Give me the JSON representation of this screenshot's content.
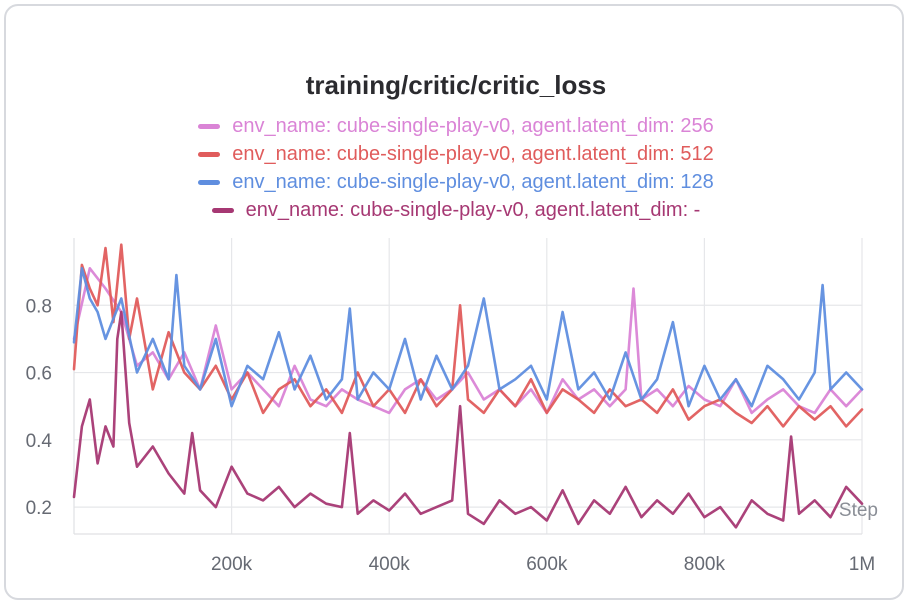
{
  "chart_data": {
    "type": "line",
    "title": "training/critic/critic_loss",
    "xlabel": "Step",
    "ylabel": "",
    "xlim": [
      0,
      1000000
    ],
    "ylim": [
      0.12,
      1.0
    ],
    "xticks": [
      200000,
      400000,
      600000,
      800000,
      1000000
    ],
    "xtick_labels": [
      "200k",
      "400k",
      "600k",
      "800k",
      "1M"
    ],
    "yticks": [
      0.2,
      0.4,
      0.6,
      0.8
    ],
    "ytick_labels": [
      "0.2",
      "0.4",
      "0.6",
      "0.8"
    ],
    "grid": true,
    "legend_position": "top-center",
    "series": [
      {
        "name": "env_name: cube-single-play-v0, agent.latent_dim: 256",
        "color": "#da84d6",
        "x": [
          0,
          20000,
          40000,
          60000,
          80000,
          100000,
          120000,
          140000,
          160000,
          180000,
          200000,
          220000,
          240000,
          260000,
          280000,
          300000,
          320000,
          340000,
          360000,
          380000,
          400000,
          420000,
          440000,
          460000,
          480000,
          500000,
          520000,
          540000,
          560000,
          580000,
          600000,
          620000,
          640000,
          660000,
          680000,
          700000,
          710000,
          720000,
          740000,
          760000,
          780000,
          800000,
          820000,
          840000,
          860000,
          880000,
          900000,
          920000,
          940000,
          960000,
          980000,
          1000000
        ],
        "values": [
          0.7,
          0.91,
          0.85,
          0.78,
          0.62,
          0.66,
          0.58,
          0.66,
          0.55,
          0.74,
          0.55,
          0.6,
          0.55,
          0.5,
          0.62,
          0.52,
          0.5,
          0.55,
          0.52,
          0.5,
          0.48,
          0.55,
          0.58,
          0.52,
          0.55,
          0.6,
          0.52,
          0.55,
          0.5,
          0.55,
          0.48,
          0.58,
          0.52,
          0.55,
          0.5,
          0.55,
          0.85,
          0.52,
          0.55,
          0.5,
          0.56,
          0.52,
          0.5,
          0.58,
          0.48,
          0.52,
          0.55,
          0.5,
          0.48,
          0.55,
          0.5,
          0.55
        ]
      },
      {
        "name": "env_name: cube-single-play-v0, agent.latent_dim: 512",
        "color": "#e05c5c",
        "x": [
          0,
          10000,
          20000,
          30000,
          40000,
          50000,
          60000,
          70000,
          80000,
          100000,
          120000,
          140000,
          160000,
          180000,
          200000,
          220000,
          240000,
          260000,
          280000,
          300000,
          320000,
          340000,
          360000,
          380000,
          400000,
          420000,
          440000,
          460000,
          480000,
          490000,
          500000,
          520000,
          540000,
          560000,
          580000,
          600000,
          620000,
          640000,
          660000,
          680000,
          700000,
          720000,
          740000,
          760000,
          780000,
          800000,
          820000,
          840000,
          860000,
          880000,
          900000,
          920000,
          940000,
          960000,
          980000,
          1000000
        ],
        "values": [
          0.61,
          0.92,
          0.85,
          0.8,
          0.97,
          0.75,
          0.98,
          0.7,
          0.82,
          0.55,
          0.72,
          0.6,
          0.55,
          0.62,
          0.52,
          0.6,
          0.48,
          0.55,
          0.58,
          0.5,
          0.55,
          0.48,
          0.6,
          0.5,
          0.55,
          0.48,
          0.58,
          0.5,
          0.55,
          0.8,
          0.52,
          0.48,
          0.55,
          0.5,
          0.58,
          0.48,
          0.55,
          0.52,
          0.48,
          0.55,
          0.5,
          0.52,
          0.48,
          0.55,
          0.46,
          0.5,
          0.52,
          0.48,
          0.45,
          0.5,
          0.44,
          0.5,
          0.46,
          0.5,
          0.44,
          0.49
        ]
      },
      {
        "name": "env_name: cube-single-play-v0, agent.latent_dim: 128",
        "color": "#5f8edf",
        "x": [
          0,
          10000,
          20000,
          30000,
          40000,
          60000,
          80000,
          100000,
          120000,
          130000,
          140000,
          160000,
          180000,
          200000,
          220000,
          240000,
          260000,
          280000,
          300000,
          320000,
          340000,
          350000,
          360000,
          380000,
          400000,
          420000,
          440000,
          460000,
          480000,
          500000,
          520000,
          540000,
          560000,
          580000,
          600000,
          620000,
          640000,
          660000,
          680000,
          700000,
          720000,
          740000,
          760000,
          780000,
          800000,
          820000,
          840000,
          860000,
          880000,
          900000,
          920000,
          940000,
          950000,
          960000,
          980000,
          1000000
        ],
        "values": [
          0.69,
          0.91,
          0.82,
          0.78,
          0.7,
          0.82,
          0.6,
          0.7,
          0.58,
          0.89,
          0.62,
          0.55,
          0.7,
          0.5,
          0.62,
          0.58,
          0.72,
          0.55,
          0.65,
          0.52,
          0.58,
          0.79,
          0.52,
          0.6,
          0.55,
          0.7,
          0.52,
          0.65,
          0.55,
          0.62,
          0.82,
          0.55,
          0.58,
          0.62,
          0.52,
          0.78,
          0.55,
          0.6,
          0.52,
          0.66,
          0.52,
          0.58,
          0.75,
          0.5,
          0.62,
          0.52,
          0.58,
          0.5,
          0.62,
          0.58,
          0.52,
          0.6,
          0.86,
          0.55,
          0.6,
          0.55
        ]
      },
      {
        "name": "env_name: cube-single-play-v0, agent.latent_dim: -",
        "color": "#a63873",
        "x": [
          0,
          10000,
          20000,
          30000,
          40000,
          50000,
          55000,
          60000,
          70000,
          80000,
          100000,
          120000,
          140000,
          150000,
          160000,
          180000,
          200000,
          220000,
          240000,
          260000,
          280000,
          300000,
          320000,
          340000,
          350000,
          360000,
          380000,
          400000,
          420000,
          440000,
          460000,
          480000,
          490000,
          500000,
          520000,
          540000,
          560000,
          580000,
          600000,
          620000,
          640000,
          660000,
          680000,
          700000,
          720000,
          740000,
          760000,
          780000,
          800000,
          820000,
          840000,
          860000,
          880000,
          900000,
          910000,
          920000,
          940000,
          960000,
          980000,
          1000000
        ],
        "values": [
          0.23,
          0.44,
          0.52,
          0.33,
          0.44,
          0.38,
          0.7,
          0.78,
          0.45,
          0.32,
          0.38,
          0.3,
          0.24,
          0.42,
          0.25,
          0.2,
          0.32,
          0.24,
          0.22,
          0.26,
          0.2,
          0.24,
          0.21,
          0.2,
          0.42,
          0.18,
          0.22,
          0.19,
          0.24,
          0.18,
          0.2,
          0.22,
          0.5,
          0.18,
          0.15,
          0.22,
          0.18,
          0.2,
          0.16,
          0.25,
          0.15,
          0.22,
          0.18,
          0.26,
          0.17,
          0.22,
          0.18,
          0.24,
          0.17,
          0.2,
          0.14,
          0.22,
          0.18,
          0.16,
          0.41,
          0.18,
          0.22,
          0.17,
          0.26,
          0.21
        ]
      }
    ]
  }
}
